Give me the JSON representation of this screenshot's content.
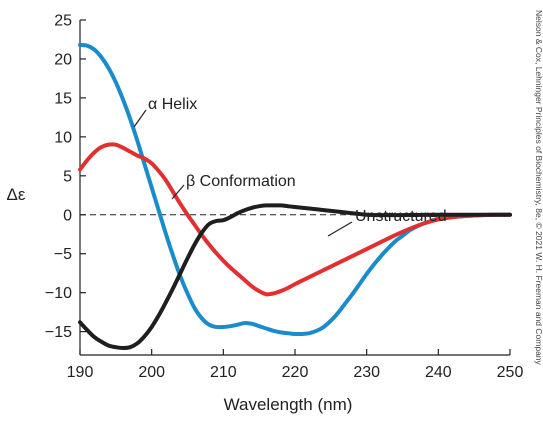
{
  "chart_data": {
    "type": "line",
    "xlabel": "Wavelength (nm)",
    "ylabel": "Δε",
    "xlim": [
      190,
      250
    ],
    "ylim": [
      -18,
      25
    ],
    "x_ticks": [
      190,
      200,
      210,
      220,
      230,
      240,
      250
    ],
    "y_ticks": [
      25,
      20,
      15,
      10,
      5,
      0,
      -5,
      -10,
      -15
    ],
    "grid": false,
    "zero_line": "dashed",
    "credit": "Nelson & Cox, Lehninger Principles of Biochemistry, 8e, © 2021 W. H. Freeman and Company",
    "series": [
      {
        "name": "α Helix",
        "color": "#1a8ccc",
        "points": [
          [
            190,
            21.8
          ],
          [
            191,
            21.7
          ],
          [
            192,
            21.2
          ],
          [
            193,
            20.2
          ],
          [
            194,
            18.8
          ],
          [
            195,
            17.0
          ],
          [
            196,
            14.8
          ],
          [
            197,
            12.3
          ],
          [
            198,
            9.5
          ],
          [
            199,
            6.5
          ],
          [
            200,
            3.5
          ],
          [
            201,
            0.5
          ],
          [
            202,
            -2.5
          ],
          [
            203,
            -5.3
          ],
          [
            204,
            -7.9
          ],
          [
            205,
            -10.1
          ],
          [
            206,
            -12.0
          ],
          [
            207,
            -13.3
          ],
          [
            208,
            -14.1
          ],
          [
            209,
            -14.4
          ],
          [
            210,
            -14.4
          ],
          [
            211,
            -14.3
          ],
          [
            212,
            -14.1
          ],
          [
            213,
            -13.9
          ],
          [
            214,
            -14.0
          ],
          [
            215,
            -14.3
          ],
          [
            216,
            -14.6
          ],
          [
            217,
            -14.9
          ],
          [
            218,
            -15.1
          ],
          [
            219,
            -15.2
          ],
          [
            220,
            -15.3
          ],
          [
            221,
            -15.3
          ],
          [
            222,
            -15.2
          ],
          [
            223,
            -14.9
          ],
          [
            224,
            -14.4
          ],
          [
            225,
            -13.6
          ],
          [
            226,
            -12.6
          ],
          [
            227,
            -11.4
          ],
          [
            228,
            -10.2
          ],
          [
            229,
            -8.9
          ],
          [
            230,
            -7.6
          ],
          [
            231,
            -6.4
          ],
          [
            232,
            -5.3
          ],
          [
            233,
            -4.3
          ],
          [
            234,
            -3.4
          ],
          [
            235,
            -2.7
          ],
          [
            236,
            -2.0
          ],
          [
            237,
            -1.5
          ],
          [
            238,
            -1.1
          ],
          [
            239,
            -0.8
          ],
          [
            240,
            -0.5
          ],
          [
            242,
            -0.3
          ],
          [
            244,
            -0.15
          ],
          [
            246,
            -0.05
          ],
          [
            248,
            0
          ],
          [
            250,
            0
          ]
        ]
      },
      {
        "name": "β Conformation",
        "color": "#e03030",
        "points": [
          [
            190,
            5.8
          ],
          [
            191,
            7.0
          ],
          [
            192,
            8.0
          ],
          [
            193,
            8.7
          ],
          [
            194,
            9.0
          ],
          [
            195,
            9.0
          ],
          [
            196,
            8.6
          ],
          [
            197,
            8.1
          ],
          [
            198,
            7.6
          ],
          [
            199,
            7.2
          ],
          [
            200,
            6.6
          ],
          [
            201,
            5.6
          ],
          [
            202,
            4.4
          ],
          [
            203,
            2.9
          ],
          [
            204,
            1.4
          ],
          [
            205,
            0
          ],
          [
            206,
            -1.3
          ],
          [
            207,
            -2.6
          ],
          [
            208,
            -3.8
          ],
          [
            209,
            -4.9
          ],
          [
            210,
            -5.9
          ],
          [
            211,
            -6.8
          ],
          [
            212,
            -7.6
          ],
          [
            213,
            -8.4
          ],
          [
            214,
            -9.2
          ],
          [
            215,
            -9.8
          ],
          [
            216,
            -10.2
          ],
          [
            217,
            -10.1
          ],
          [
            218,
            -9.8
          ],
          [
            219,
            -9.4
          ],
          [
            220,
            -8.9
          ],
          [
            222,
            -8.0
          ],
          [
            224,
            -7.1
          ],
          [
            226,
            -6.2
          ],
          [
            228,
            -5.3
          ],
          [
            230,
            -4.4
          ],
          [
            232,
            -3.5
          ],
          [
            234,
            -2.6
          ],
          [
            236,
            -1.8
          ],
          [
            238,
            -1.1
          ],
          [
            240,
            -0.6
          ],
          [
            242,
            -0.3
          ],
          [
            245,
            -0.1
          ],
          [
            248,
            0
          ],
          [
            250,
            0
          ]
        ]
      },
      {
        "name": "Unstructured",
        "color": "#1e1e1e",
        "points": [
          [
            190,
            -13.8
          ],
          [
            191,
            -14.8
          ],
          [
            192,
            -15.7
          ],
          [
            193,
            -16.3
          ],
          [
            194,
            -16.8
          ],
          [
            195,
            -17.0
          ],
          [
            196,
            -17.1
          ],
          [
            197,
            -17.0
          ],
          [
            198,
            -16.5
          ],
          [
            199,
            -15.6
          ],
          [
            200,
            -14.4
          ],
          [
            201,
            -12.9
          ],
          [
            202,
            -11.2
          ],
          [
            203,
            -9.4
          ],
          [
            204,
            -7.5
          ],
          [
            205,
            -5.6
          ],
          [
            206,
            -3.8
          ],
          [
            207,
            -2.3
          ],
          [
            208,
            -1.2
          ],
          [
            209,
            -0.8
          ],
          [
            210,
            -0.7
          ],
          [
            211,
            -0.3
          ],
          [
            212,
            0.2
          ],
          [
            213,
            0.6
          ],
          [
            214,
            0.9
          ],
          [
            215,
            1.1
          ],
          [
            216,
            1.2
          ],
          [
            217,
            1.2
          ],
          [
            218,
            1.2
          ],
          [
            219,
            1.1
          ],
          [
            220,
            1.0
          ],
          [
            222,
            0.8
          ],
          [
            224,
            0.6
          ],
          [
            226,
            0.4
          ],
          [
            228,
            0.2
          ],
          [
            230,
            0
          ],
          [
            232,
            -0.05
          ],
          [
            235,
            -0.05
          ],
          [
            240,
            0
          ],
          [
            245,
            0
          ],
          [
            250,
            0
          ]
        ]
      }
    ]
  }
}
